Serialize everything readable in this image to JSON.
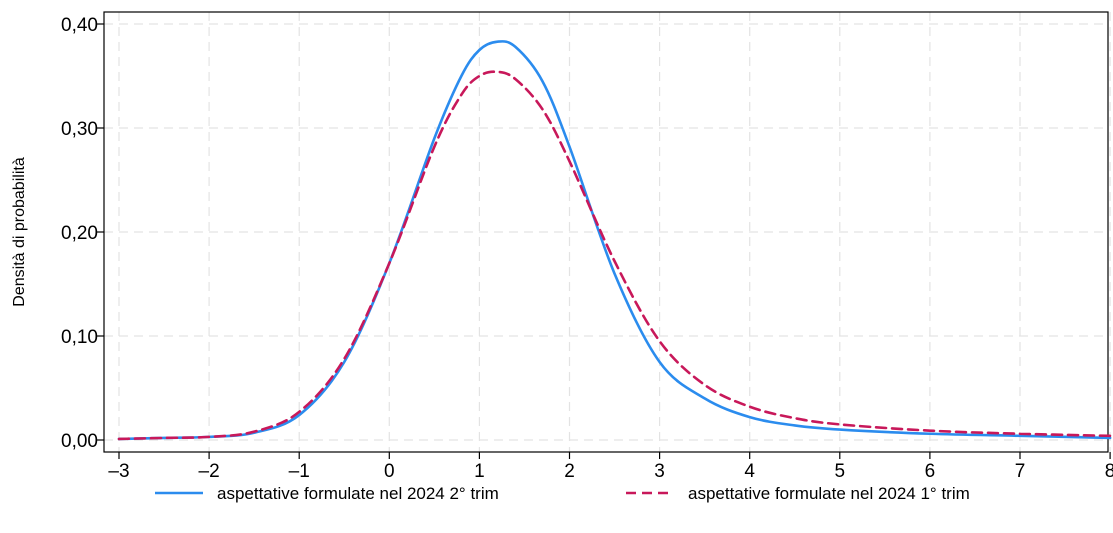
{
  "chart_data": {
    "type": "line",
    "title": "",
    "xlabel": "",
    "ylabel": "Densità di probabilità",
    "xlim": [
      -3,
      8
    ],
    "ylim": [
      0,
      0.4
    ],
    "grid": true,
    "legend_position": "bottom",
    "x_ticks": [
      {
        "value": -3,
        "label": "–3"
      },
      {
        "value": -2,
        "label": "–2"
      },
      {
        "value": -1,
        "label": "–1"
      },
      {
        "value": 0,
        "label": "0"
      },
      {
        "value": 1,
        "label": "1"
      },
      {
        "value": 2,
        "label": "2"
      },
      {
        "value": 3,
        "label": "3"
      },
      {
        "value": 4,
        "label": "4"
      },
      {
        "value": 5,
        "label": "5"
      },
      {
        "value": 6,
        "label": "6"
      },
      {
        "value": 7,
        "label": "7"
      },
      {
        "value": 8,
        "label": "8"
      }
    ],
    "y_ticks": [
      {
        "value": 0.0,
        "label": "0,00"
      },
      {
        "value": 0.1,
        "label": "0,10"
      },
      {
        "value": 0.2,
        "label": "0,20"
      },
      {
        "value": 0.3,
        "label": "0,30"
      },
      {
        "value": 0.4,
        "label": "0,40"
      }
    ],
    "x": [
      -3,
      -2.5,
      -2,
      -1.5,
      -1,
      -0.5,
      0,
      0.5,
      0.8,
      1,
      1.2,
      1.4,
      1.7,
      2,
      2.5,
      3,
      3.5,
      4,
      4.5,
      5,
      6,
      7,
      8
    ],
    "series": [
      {
        "name": "aspettative formulate nel 2024 2° trim",
        "color": "#2b8cee",
        "dash": "solid",
        "values": [
          0.001,
          0.002,
          0.003,
          0.007,
          0.024,
          0.075,
          0.17,
          0.29,
          0.35,
          0.375,
          0.383,
          0.378,
          0.345,
          0.282,
          0.16,
          0.075,
          0.04,
          0.022,
          0.014,
          0.01,
          0.006,
          0.004,
          0.002
        ]
      },
      {
        "name": "aspettative formulate nel 2024 1° trim",
        "color": "#c8185a",
        "dash": "dashed",
        "values": [
          0.001,
          0.002,
          0.003,
          0.008,
          0.027,
          0.078,
          0.17,
          0.282,
          0.332,
          0.35,
          0.354,
          0.347,
          0.318,
          0.268,
          0.172,
          0.095,
          0.053,
          0.032,
          0.021,
          0.015,
          0.009,
          0.006,
          0.004
        ]
      }
    ]
  }
}
